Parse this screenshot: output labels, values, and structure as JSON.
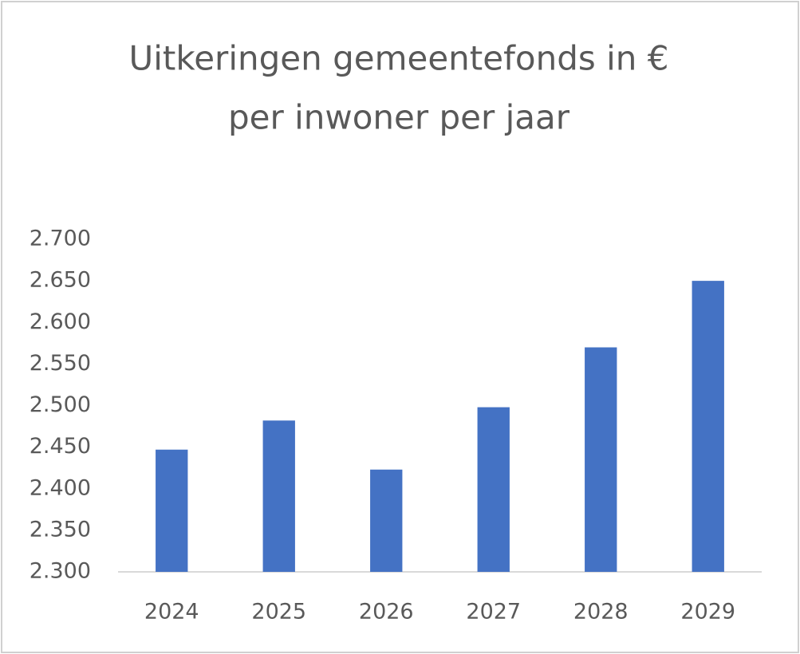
{
  "chart_data": {
    "type": "bar",
    "title": [
      "Uitkeringen gemeentefonds in €",
      "per inwoner per jaar"
    ],
    "categories": [
      "2024",
      "2025",
      "2026",
      "2027",
      "2028",
      "2029"
    ],
    "values": [
      2447,
      2482,
      2423,
      2498,
      2570,
      2650
    ],
    "color": "#4472c4",
    "ylim": [
      2300,
      2700
    ],
    "yticks": [
      {
        "value": 2300,
        "label": "2.300"
      },
      {
        "value": 2350,
        "label": "2.350"
      },
      {
        "value": 2400,
        "label": "2.400"
      },
      {
        "value": 2450,
        "label": "2.450"
      },
      {
        "value": 2500,
        "label": "2.500"
      },
      {
        "value": 2550,
        "label": "2.550"
      },
      {
        "value": 2600,
        "label": "2.600"
      },
      {
        "value": 2650,
        "label": "2.650"
      },
      {
        "value": 2700,
        "label": "2.700"
      }
    ],
    "grid": false
  }
}
